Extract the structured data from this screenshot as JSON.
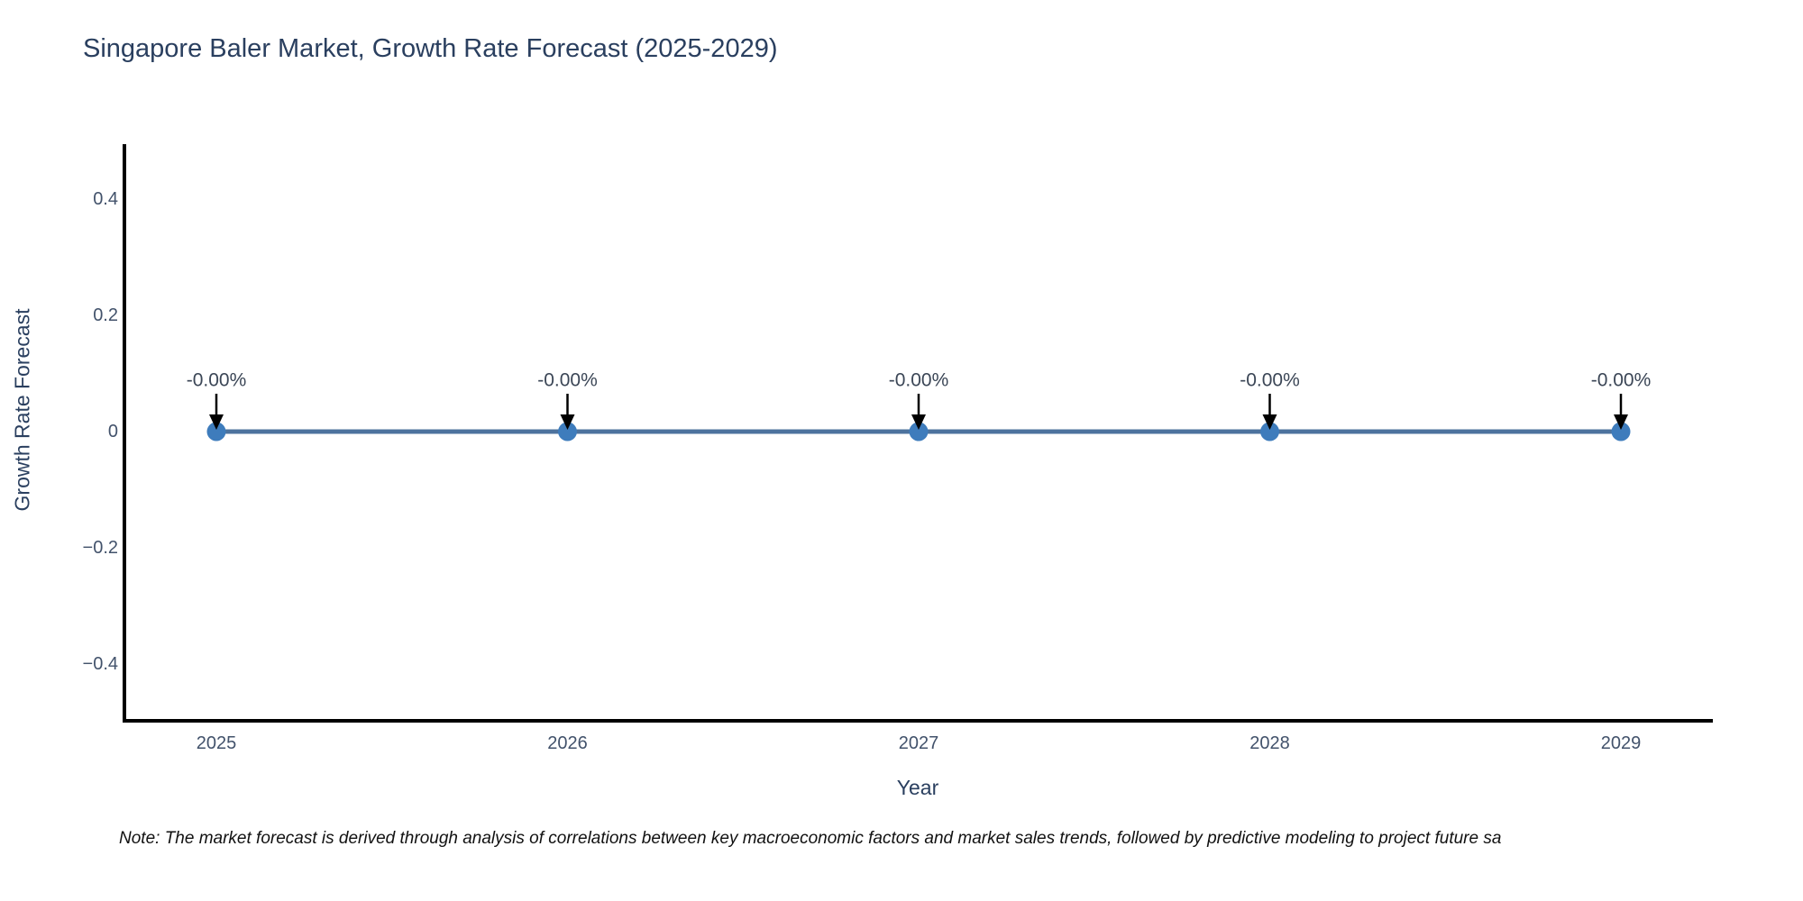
{
  "note": {
    "text": "Note: The market forecast is derived through analysis of correlations between key macroeconomic factors and market sales trends, followed by predictive modeling to project future sa"
  },
  "chart_data": {
    "type": "line",
    "title": "Singapore Baler Market, Growth Rate Forecast (2025-2029)",
    "xlabel": "Year",
    "ylabel": "Growth Rate Forecast",
    "categories": [
      "2025",
      "2026",
      "2027",
      "2028",
      "2029"
    ],
    "series": [
      {
        "name": "Growth Rate Forecast",
        "values": [
          0,
          0,
          0,
          0,
          0
        ]
      }
    ],
    "point_annotations": [
      "-0.00%",
      "-0.00%",
      "-0.00%",
      "-0.00%",
      "-0.00%"
    ],
    "yticks": [
      {
        "value": 0.4,
        "label": "0.4"
      },
      {
        "value": 0.2,
        "label": "0.2"
      },
      {
        "value": 0,
        "label": "0"
      },
      {
        "value": -0.2,
        "label": "−0.2"
      },
      {
        "value": -0.4,
        "label": "−0.4"
      }
    ],
    "ylim": [
      -0.5,
      0.5
    ],
    "grid": false,
    "legend_position": "none",
    "colors": {
      "line": "#4D739E",
      "marker": "#3E7CBC",
      "axis": "#000000",
      "arrow": "#000000",
      "title_text": "#2a3f5f",
      "tick_text": "#42526B",
      "annotation_text": "#3B4656",
      "note_text": "#111111"
    }
  }
}
